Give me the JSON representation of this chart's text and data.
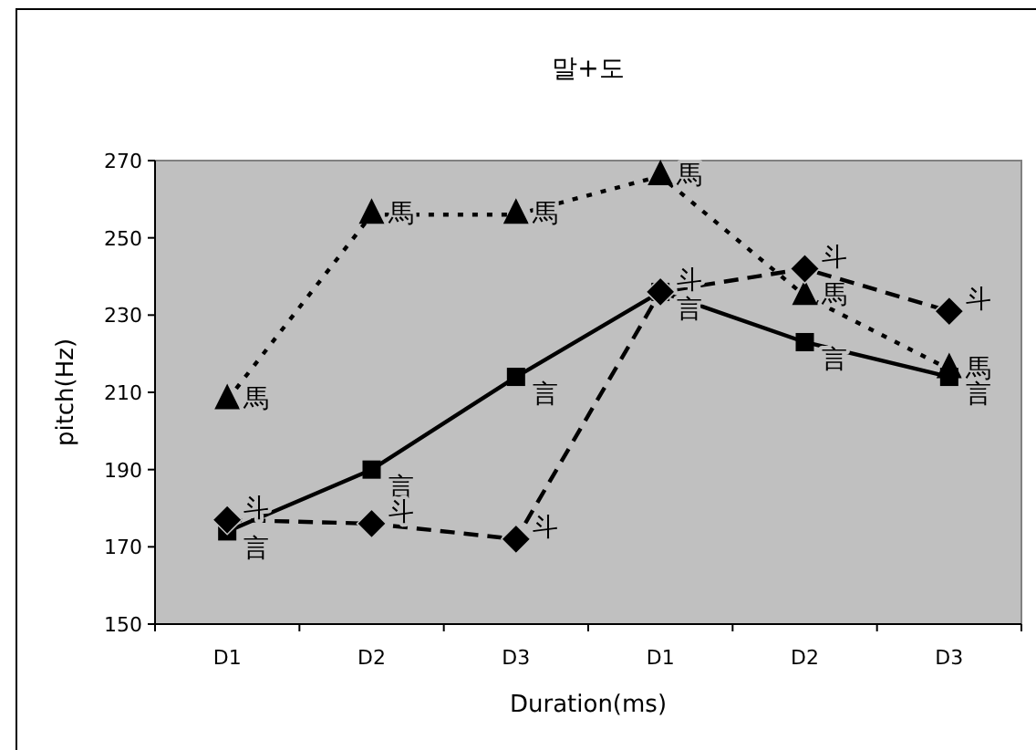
{
  "chart_data": {
    "type": "line",
    "title": "말+도",
    "xlabel": "Duration(ms)",
    "ylabel": "pitch(Hz)",
    "categories": [
      "D1",
      "D2",
      "D3",
      "D1",
      "D2",
      "D3"
    ],
    "ylim": [
      150,
      270
    ],
    "yticks": [
      150,
      170,
      190,
      210,
      230,
      250,
      270
    ],
    "grid": false,
    "series": [
      {
        "name": "馬",
        "color": "#000000",
        "marker": "triangle",
        "line_style": "dotted",
        "values": [
          208,
          256,
          256,
          266,
          235,
          216
        ]
      },
      {
        "name": "言",
        "color": "#000000",
        "marker": "square",
        "line_style": "solid",
        "values": [
          174,
          190,
          214,
          236,
          223,
          214
        ]
      },
      {
        "name": "斗",
        "color": "#000000",
        "marker": "diamond",
        "line_style": "dashed",
        "values": [
          177,
          176,
          172,
          236,
          242,
          231
        ]
      }
    ]
  }
}
